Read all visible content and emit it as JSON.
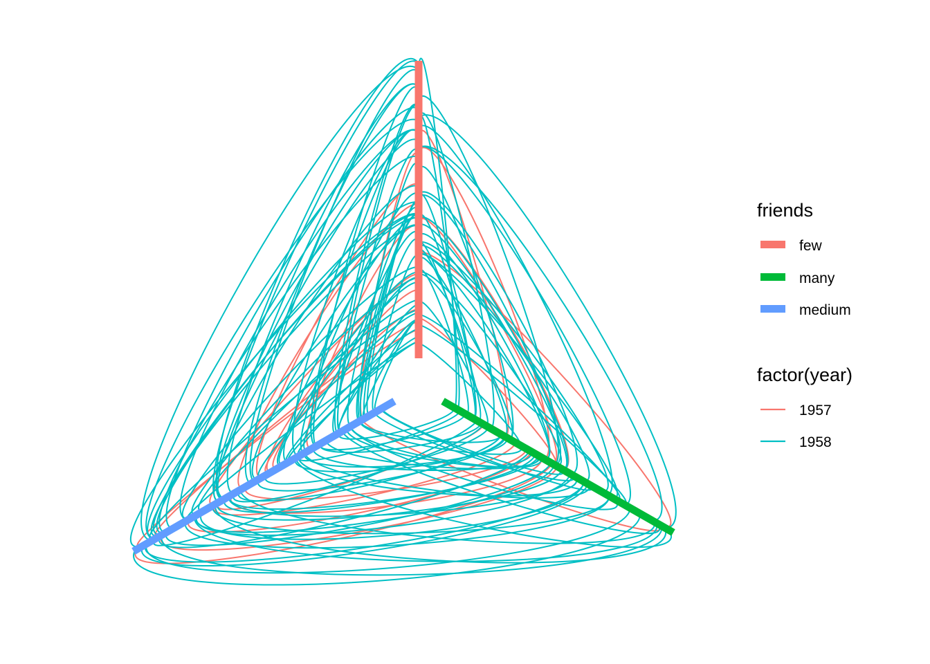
{
  "chart_data": {
    "type": "hive",
    "axes": [
      {
        "name": "few",
        "color": "#F8766D"
      },
      {
        "name": "many",
        "color": "#00BA38"
      },
      {
        "name": "medium",
        "color": "#619CFF"
      }
    ],
    "edge_series": [
      {
        "name": "1957",
        "color": "#F8766D"
      },
      {
        "name": "1958",
        "color": "#00BFC4"
      }
    ],
    "legend": {
      "placement": "right",
      "groups": [
        {
          "title": "friends",
          "items": [
            {
              "label": "few",
              "color": "#F8766D",
              "kind": "thick"
            },
            {
              "label": "many",
              "color": "#00BA38",
              "kind": "thick"
            },
            {
              "label": "medium",
              "color": "#619CFF",
              "kind": "thick"
            }
          ]
        },
        {
          "title": "factor(year)",
          "items": [
            {
              "label": "1957",
              "color": "#F8766D",
              "kind": "thin"
            },
            {
              "label": "1958",
              "color": "#00BFC4",
              "kind": "thin"
            }
          ]
        }
      ]
    }
  }
}
